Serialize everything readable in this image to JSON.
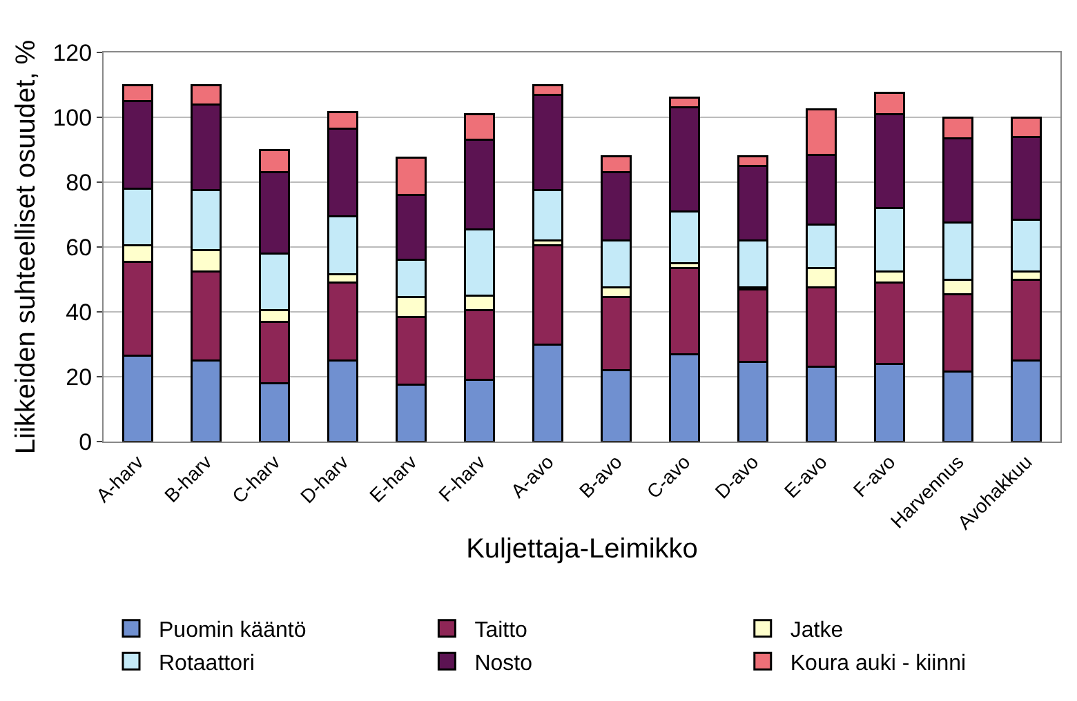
{
  "chart_data": {
    "type": "bar",
    "stacked": true,
    "xlabel": "Kuljettaja-Leimikko",
    "ylabel": "Liikkeiden suhteelliset osuudet, %",
    "categories": [
      "A-harv",
      "B-harv",
      "C-harv",
      "D-harv",
      "E-harv",
      "F-harv",
      "A-avo",
      "B-avo",
      "C-avo",
      "D-avo",
      "E-avo",
      "F-avo",
      "Harvennus",
      "Avohakkuu"
    ],
    "series": [
      {
        "name": "Puomin kääntö",
        "color": "#7090d0",
        "values": [
          26.5,
          25,
          18,
          25,
          17.5,
          19,
          30,
          22,
          27,
          24.5,
          23,
          24,
          21.5,
          25
        ]
      },
      {
        "name": "Taitto",
        "color": "#8e2656",
        "values": [
          29,
          27.5,
          19,
          24,
          21,
          21.5,
          30.5,
          22.5,
          26.5,
          22.5,
          24.5,
          25,
          24,
          25
        ]
      },
      {
        "name": "Jatke",
        "color": "#ffffcc",
        "values": [
          5,
          6.5,
          3.5,
          2.5,
          6,
          4.5,
          1.5,
          3,
          1.5,
          0.5,
          6,
          3.5,
          4.5,
          2.5
        ]
      },
      {
        "name": "Rotaattori",
        "color": "#c4eaf8",
        "values": [
          17.5,
          18.5,
          17.5,
          18,
          11.5,
          20.5,
          15.5,
          14.5,
          16,
          14.5,
          13.5,
          19.5,
          17.5,
          16
        ]
      },
      {
        "name": "Nosto",
        "color": "#5c1352",
        "values": [
          27,
          26.5,
          25,
          27,
          20,
          27.5,
          29.5,
          21,
          32,
          23,
          21.5,
          29,
          26,
          25.5
        ]
      },
      {
        "name": "Koura auki - kiinni",
        "color": "#ee7078",
        "values": [
          5,
          6,
          7,
          5,
          11.5,
          8,
          3,
          5,
          3,
          3,
          14,
          6.5,
          6.5,
          6
        ]
      }
    ],
    "ylim": [
      0,
      120
    ],
    "yticks": [
      0,
      20,
      40,
      60,
      80,
      100,
      120
    ],
    "grid": "y",
    "legend": "bottom"
  }
}
